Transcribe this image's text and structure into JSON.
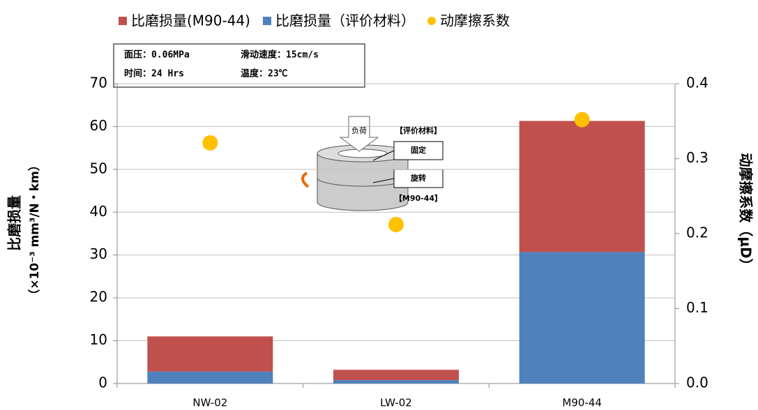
{
  "chart_data": {
    "type": "bar",
    "categories": [
      "NW-02",
      "LW-02",
      "M90-44"
    ],
    "series": [
      {
        "name": "比磨损量(M90-44)",
        "color": "#c0504d",
        "values": [
          8.2,
          2.4,
          30.6
        ],
        "stack": "wear"
      },
      {
        "name": "比磨损量（评价材料）",
        "color": "#4f81bd",
        "values": [
          2.8,
          0.8,
          30.7
        ],
        "stack": "wear"
      },
      {
        "name": "动摩擦系数",
        "color": "#ffc000",
        "type": "scatter",
        "axis": "y2",
        "values": [
          0.321,
          0.212,
          0.352
        ]
      }
    ],
    "ylabel": [
      "比磨损量",
      "（×10⁻³ mm³/N・km）"
    ],
    "y2label": "动摩擦系数（μD）",
    "ylim": [
      0,
      70
    ],
    "yticks": [
      0,
      10,
      20,
      30,
      40,
      50,
      60,
      70
    ],
    "y2lim": [
      0,
      0.4
    ],
    "y2ticks": [
      {
        "value": 0,
        "label": "0.0"
      },
      0.1,
      0.2,
      0.3,
      0.4
    ],
    "grid": true,
    "legend": "top",
    "annotations": [
      "面压：0.06MPa",
      "滑动速度：15cm/s",
      "时间：24 Hrs",
      "温度：23℃"
    ],
    "inset_labels": [
      "负荷",
      "【评价材料】",
      "固定",
      "旋转",
      "【M90-44】"
    ]
  }
}
